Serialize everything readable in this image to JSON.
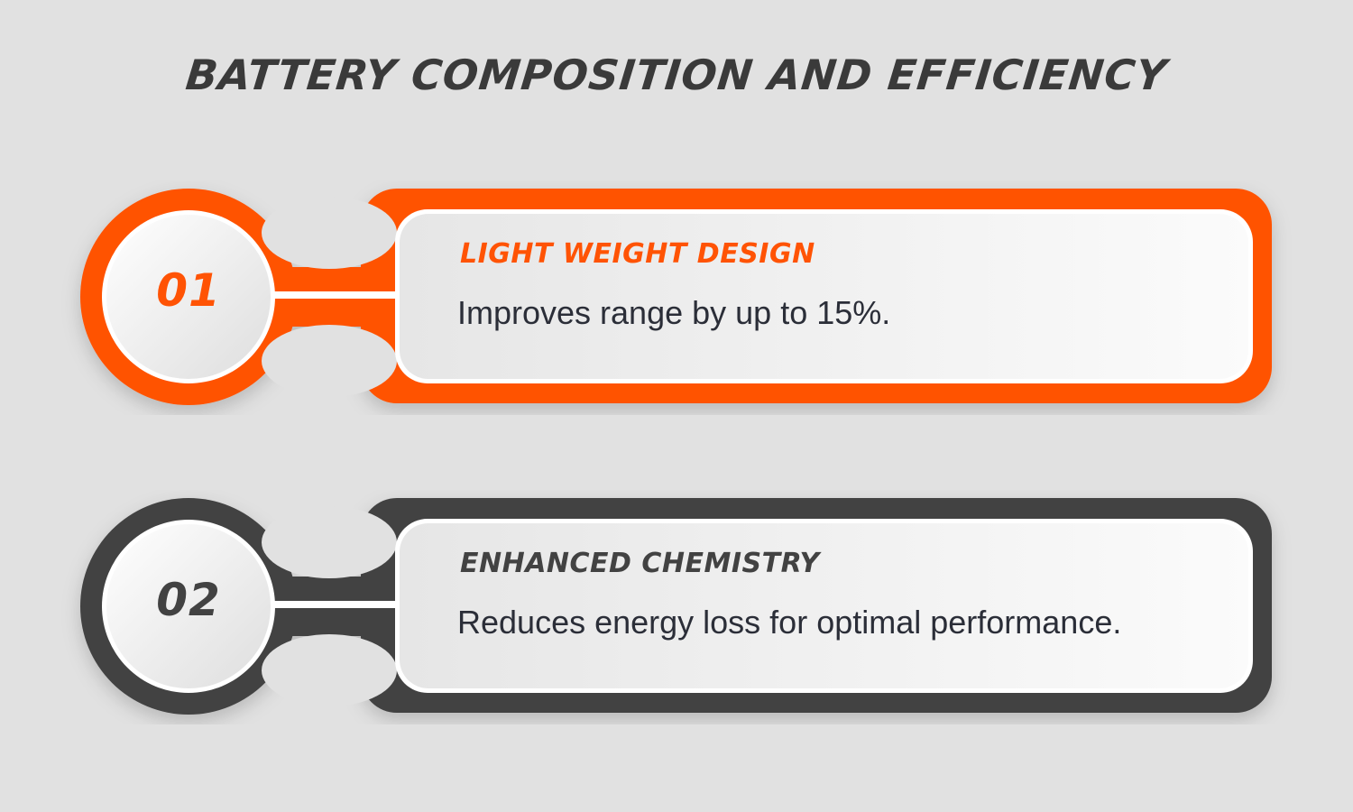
{
  "title": "BATTERY COMPOSITION AND EFFICIENCY",
  "items": [
    {
      "number": "01",
      "heading": "LIGHT WEIGHT DESIGN",
      "description": "Improves range by up to 15%.",
      "color": "#ff5304",
      "heading_color": "#ff5304"
    },
    {
      "number": "02",
      "heading": "ENHANCED CHEMISTRY",
      "description": "Reduces energy loss for optimal performance.",
      "color": "#424242",
      "heading_color": "#424242"
    }
  ]
}
